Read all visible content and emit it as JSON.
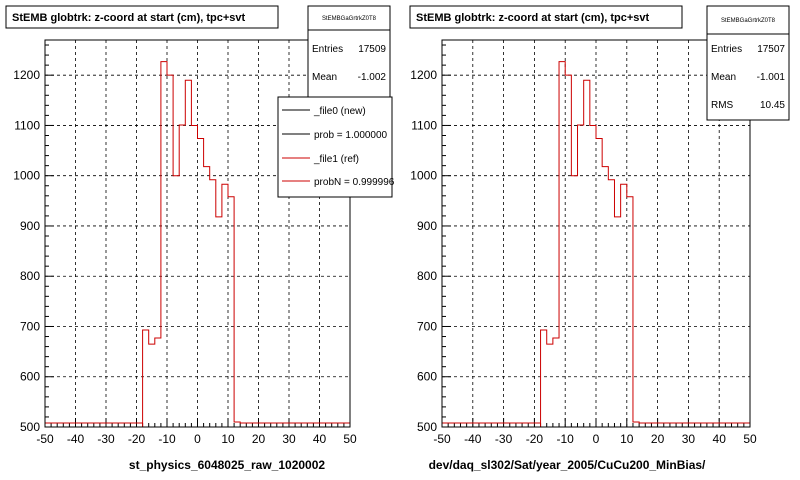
{
  "chart_data": [
    {
      "type": "histogram",
      "title": "StEMB globtrk: z-coord at start (cm), tpc+svt",
      "xlabel": "st_physics_6048025_raw_1020002",
      "xlim": [
        -50,
        50
      ],
      "ylim": [
        500,
        1270
      ],
      "xticks": [
        -50,
        -40,
        -30,
        -20,
        -10,
        0,
        10,
        20,
        30,
        40,
        50
      ],
      "yticks": [
        500,
        600,
        700,
        800,
        900,
        1000,
        1100,
        1200
      ],
      "grid": true,
      "stats": {
        "name": "StEMBGaGrtrkZ0T8",
        "rows": [
          {
            "label": "Entries",
            "value": "17509"
          },
          {
            "label": "Mean",
            "value": "-1.002"
          }
        ]
      },
      "legend": {
        "placement": "top-right",
        "entries": [
          {
            "label": "_file0 (new)",
            "color": "#000000"
          },
          {
            "label": "prob = 1.000000",
            "color": "#000000"
          },
          {
            "label": "_file1 (ref)",
            "color": "#cc0000"
          },
          {
            "label": "probN = 0.999996",
            "color": "#cc0000"
          }
        ]
      },
      "series": [
        {
          "color": "#cc0000",
          "x": [
            -50,
            -49,
            -48,
            -47,
            -46,
            -45,
            -44,
            -43,
            -42,
            -41,
            -40,
            -39,
            -38,
            -37,
            -36,
            -35,
            -34,
            -33,
            -32,
            -31,
            -30,
            -29,
            -28,
            -27,
            -26,
            -25,
            -24,
            -23,
            -22,
            -21,
            -20,
            -19,
            -18,
            -17,
            -16,
            -15,
            -14,
            -13,
            -12,
            -11,
            -10,
            -9,
            -8,
            -7,
            -6,
            -5,
            -4,
            -3,
            -2,
            -1,
            0,
            1,
            2,
            3,
            4,
            5,
            6,
            7,
            8,
            9,
            10,
            11,
            12,
            13,
            14,
            15,
            16,
            17,
            18,
            19,
            20,
            21,
            22,
            23,
            24,
            25,
            26,
            27,
            28,
            29,
            30,
            31,
            32,
            33,
            34,
            35,
            36,
            37,
            38,
            39,
            40,
            41,
            42,
            43,
            44,
            45,
            46,
            47,
            48,
            49
          ],
          "values": [
            0,
            0,
            0,
            0,
            0,
            0,
            0,
            0,
            0,
            0,
            0,
            0,
            0,
            0,
            0,
            0,
            0,
            0,
            0,
            0,
            0,
            0,
            0,
            0,
            0,
            0,
            0,
            0,
            0,
            0,
            0,
            0,
            0,
            0,
            0,
            0,
            0,
            0,
            0,
            0,
            0,
            0,
            0,
            0,
            0,
            0,
            0,
            0,
            0,
            0,
            0,
            0,
            0,
            0,
            0,
            0,
            0,
            0,
            0,
            0,
            0,
            0,
            0,
            0,
            0,
            0,
            0,
            0,
            0,
            0,
            0,
            0,
            0,
            0,
            0,
            0,
            0,
            0,
            0,
            0,
            0,
            0,
            0,
            0,
            0,
            0,
            0,
            0,
            0,
            0,
            0,
            0,
            0,
            0,
            0,
            0,
            0,
            0,
            0,
            0
          ],
          "bins": [
            {
              "x0": -18,
              "x1": -16,
              "y": 693
            },
            {
              "x0": -16,
              "x1": -14,
              "y": 665
            },
            {
              "x0": -14,
              "x1": -12,
              "y": 677
            },
            {
              "x0": -12,
              "x1": -10,
              "y": 1227
            },
            {
              "x0": -10,
              "x1": -8,
              "y": 1200
            },
            {
              "x0": -8,
              "x1": -6,
              "y": 1000
            },
            {
              "x0": -6,
              "x1": -4,
              "y": 1101
            },
            {
              "x0": -4,
              "x1": -2,
              "y": 1190
            },
            {
              "x0": -2,
              "x1": 0,
              "y": 1100
            },
            {
              "x0": 0,
              "x1": 2,
              "y": 1074
            },
            {
              "x0": 2,
              "x1": 4,
              "y": 1018
            },
            {
              "x0": 4,
              "x1": 6,
              "y": 992
            },
            {
              "x0": 6,
              "x1": 8,
              "y": 918
            },
            {
              "x0": 8,
              "x1": 10,
              "y": 983
            },
            {
              "x0": 10,
              "x1": 12,
              "y": 958
            },
            {
              "x0": 12,
              "x1": 14,
              "y": 510
            }
          ]
        }
      ]
    },
    {
      "type": "histogram",
      "title": "StEMB globtrk: z-coord at start (cm), tpc+svt",
      "xlabel": "dev/daq_sl302/Sat/year_2005/CuCu200_MinBias/",
      "xlim": [
        -50,
        50
      ],
      "ylim": [
        500,
        1270
      ],
      "xticks": [
        -50,
        -40,
        -30,
        -20,
        -10,
        0,
        10,
        20,
        30,
        40,
        50
      ],
      "yticks": [
        500,
        600,
        700,
        800,
        900,
        1000,
        1100,
        1200
      ],
      "grid": true,
      "stats": {
        "name": "StEMBGaGrtrkZ0T8",
        "rows": [
          {
            "label": "Entries",
            "value": "17507"
          },
          {
            "label": "Mean",
            "value": "-1.001"
          },
          {
            "label": "RMS",
            "value": "10.45"
          }
        ]
      },
      "series": [
        {
          "color": "#cc0000",
          "bins": [
            {
              "x0": -18,
              "x1": -16,
              "y": 693
            },
            {
              "x0": -16,
              "x1": -14,
              "y": 665
            },
            {
              "x0": -14,
              "x1": -12,
              "y": 677
            },
            {
              "x0": -12,
              "x1": -10,
              "y": 1227
            },
            {
              "x0": -10,
              "x1": -8,
              "y": 1200
            },
            {
              "x0": -8,
              "x1": -6,
              "y": 1000
            },
            {
              "x0": -6,
              "x1": -4,
              "y": 1101
            },
            {
              "x0": -4,
              "x1": -2,
              "y": 1190
            },
            {
              "x0": -2,
              "x1": 0,
              "y": 1100
            },
            {
              "x0": 0,
              "x1": 2,
              "y": 1074
            },
            {
              "x0": 2,
              "x1": 4,
              "y": 1018
            },
            {
              "x0": 4,
              "x1": 6,
              "y": 992
            },
            {
              "x0": 6,
              "x1": 8,
              "y": 918
            },
            {
              "x0": 8,
              "x1": 10,
              "y": 983
            },
            {
              "x0": 10,
              "x1": 12,
              "y": 958
            },
            {
              "x0": 12,
              "x1": 14,
              "y": 510
            }
          ]
        }
      ]
    }
  ],
  "colors": {
    "frame": "#000000",
    "grid": "#000000",
    "line": "#cc0000",
    "background": "#ffffff"
  }
}
